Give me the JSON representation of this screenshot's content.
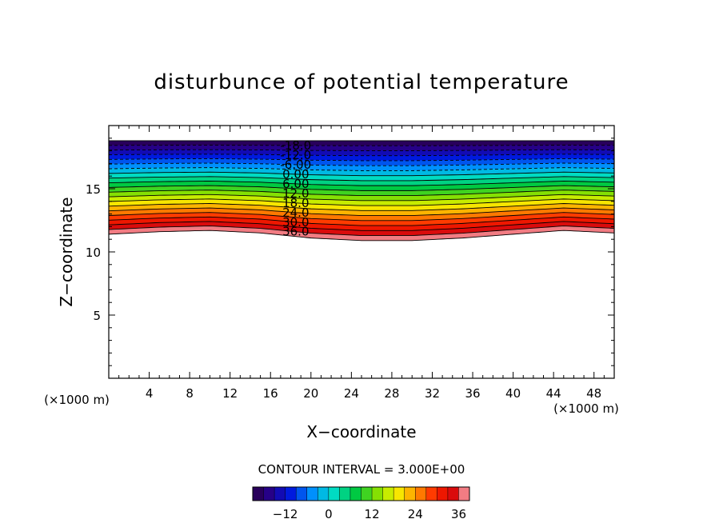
{
  "chart_data": {
    "type": "contour",
    "title": "disturbunce of potential temperature",
    "xlabel": "X−coordinate",
    "ylabel": "Z−coordinate",
    "x_unit_left": "(×1000 m)",
    "x_unit_right": "(×1000 m)",
    "xlim": [
      0,
      50
    ],
    "ylim": [
      0,
      20
    ],
    "x_ticks": [
      "4",
      "8",
      "12",
      "16",
      "20",
      "24",
      "28",
      "32",
      "36",
      "40",
      "44",
      "48"
    ],
    "y_ticks": [
      "5",
      "10",
      "15"
    ],
    "contour_interval_text": "CONTOUR INTERVAL = 3.000E+00",
    "contour_interval": 3.0,
    "contour_labels": [
      "-18.0",
      "-12.0",
      "-6.00",
      "0.00",
      "6.00",
      "12.0",
      "18.0",
      "24.0",
      "30.0",
      "36.0"
    ],
    "field_min": -21,
    "field_max": 39,
    "colorbar_ticks": [
      "−12",
      "0",
      "12",
      "24",
      "36"
    ],
    "top_boundary_z": 18.8,
    "bottom_boundary_profile": {
      "x": [
        0,
        5,
        10,
        15,
        20,
        25,
        30,
        35,
        40,
        45,
        50
      ],
      "z": [
        11.4,
        11.6,
        11.7,
        11.5,
        11.1,
        10.9,
        10.9,
        11.1,
        11.4,
        11.7,
        11.5
      ]
    },
    "negative_contours": "dashed",
    "positive_contours": "solid"
  }
}
